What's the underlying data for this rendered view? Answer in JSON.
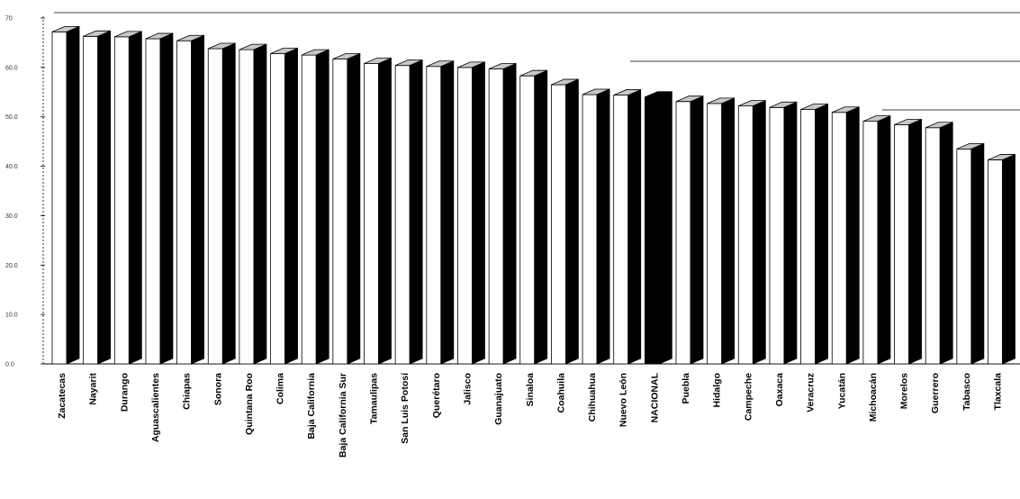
{
  "chart_data": {
    "type": "bar",
    "style": "3d-column",
    "grid": false,
    "legend": "none",
    "ylim": [
      0,
      70
    ],
    "y_ticks": [
      "0.0",
      "10.0",
      "20.0",
      "30.0",
      "40.0",
      "50.0",
      "60.0",
      "70"
    ],
    "categories": [
      "Zacatecas",
      "Nayarit",
      "Durango",
      "Aguascalientes",
      "Chiapas",
      "Sonora",
      "Quintana Roo",
      "Colima",
      "Baja California",
      "Baja California Sur",
      "Tamaulipas",
      "San Luis Potosí",
      "Querétaro",
      "Jalisco",
      "Guanajuato",
      "Sinaloa",
      "Coahuila",
      "Chihuahua",
      "Nuevo León",
      "NACIONAL",
      "Puebla",
      "Hidalgo",
      "Campeche",
      "Oaxaca",
      "Veracruz",
      "Yucatán",
      "Michoacán",
      "Morelos",
      "Guerrero",
      "Tabasco",
      "Tlaxcala"
    ],
    "values": [
      67.2,
      66.3,
      66.2,
      65.8,
      65.4,
      63.8,
      63.6,
      62.8,
      62.5,
      61.7,
      60.8,
      60.4,
      60.2,
      60.0,
      59.7,
      58.3,
      56.5,
      54.5,
      54.4,
      54.0,
      53.1,
      52.7,
      52.2,
      51.9,
      51.5,
      50.9,
      49.1,
      48.4,
      47.8,
      43.5,
      41.3
    ],
    "highlight": "NACIONAL"
  },
  "colors": {
    "front": "#ffffff",
    "side": "#000000",
    "top": "#c8c8c8",
    "highlight": "#000000",
    "axis": "#000000"
  }
}
